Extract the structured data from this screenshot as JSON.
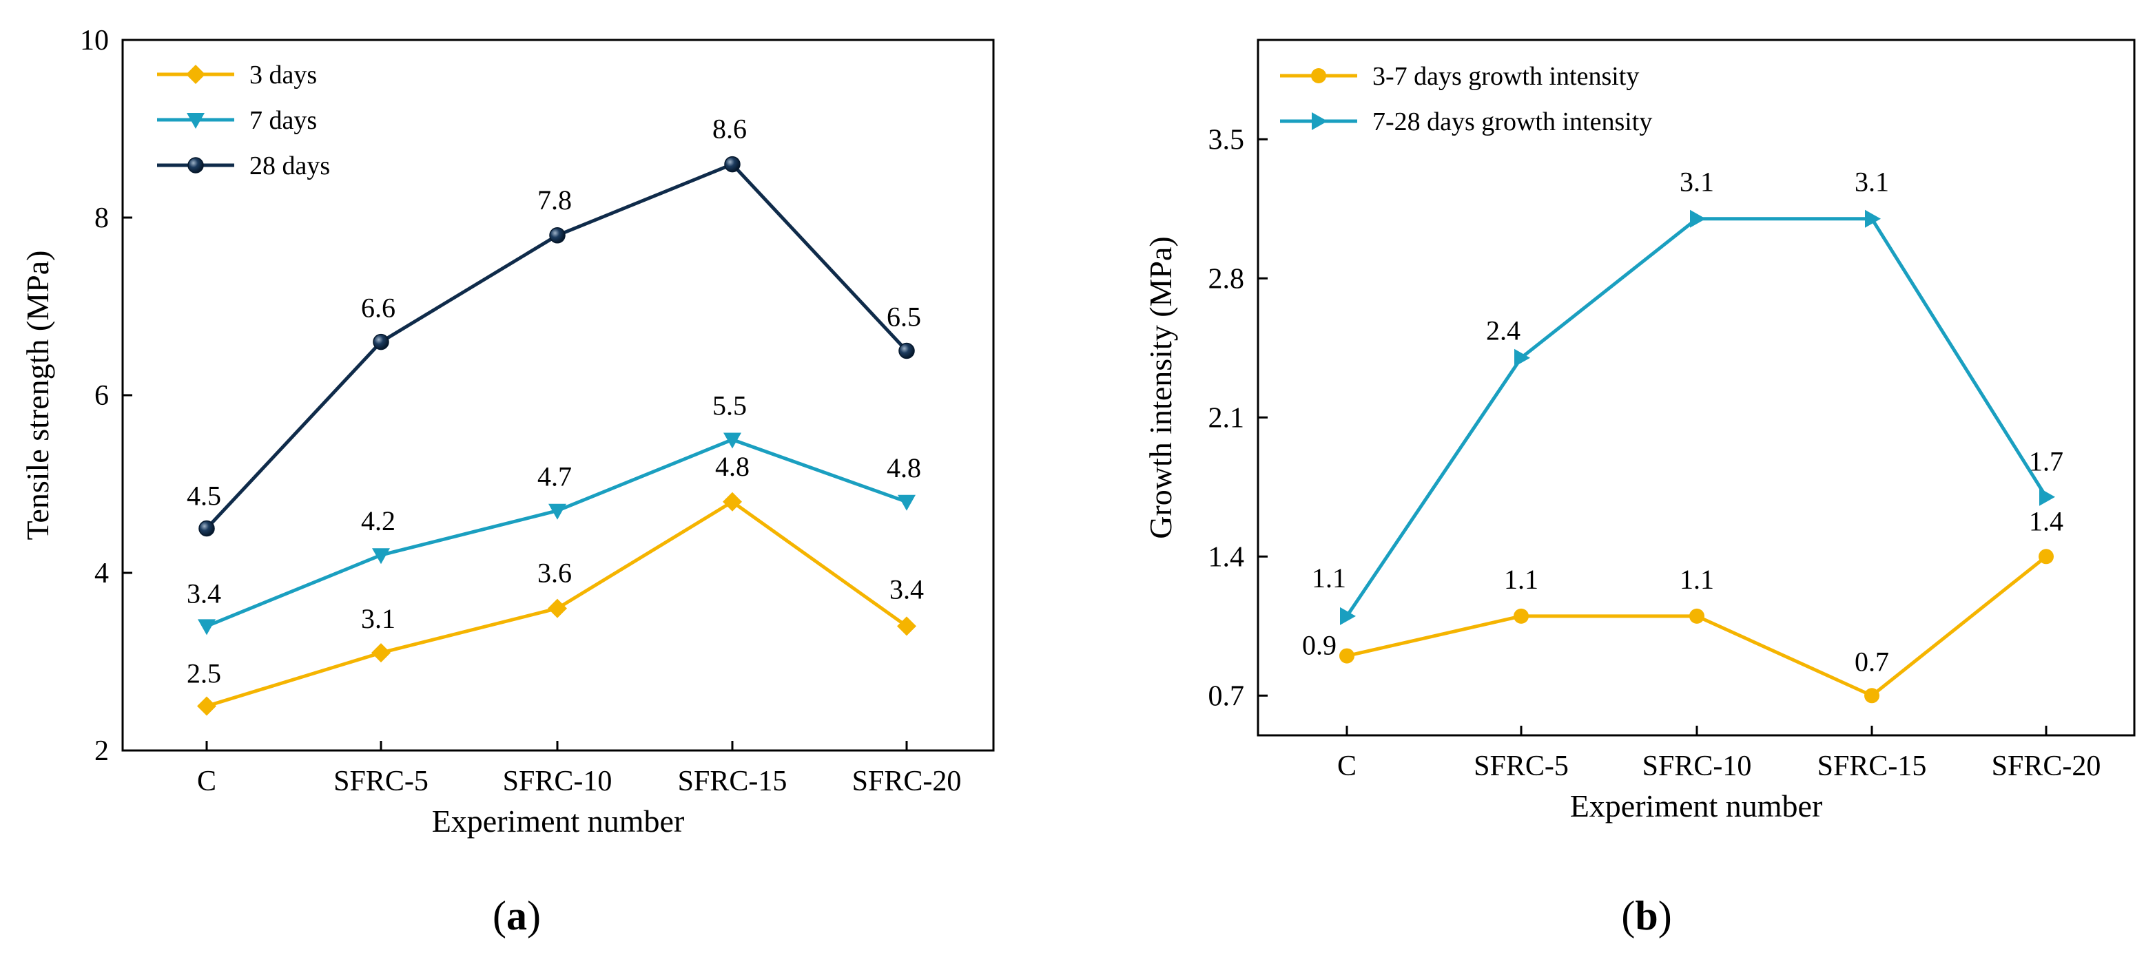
{
  "chart_data": [
    {
      "type": "line",
      "panel": "a",
      "panel_label": {
        "open": "(",
        "letter": "a",
        "close": ")"
      },
      "title": "",
      "xlabel": "Experiment number",
      "ylabel": "Tensile strength (MPa)",
      "categories": [
        "C",
        "SFRC-5",
        "SFRC-10",
        "SFRC-15",
        "SFRC-20"
      ],
      "ylim": [
        2,
        10
      ],
      "yticks": [
        2,
        4,
        6,
        8,
        10
      ],
      "ytick_labels": [
        "2",
        "4",
        "6",
        "8",
        "10"
      ],
      "legend_position": "top-left",
      "grid": false,
      "series": [
        {
          "name": "3 days",
          "marker": "diamond",
          "color": "#F5B400",
          "values": [
            2.5,
            3.1,
            3.6,
            4.8,
            3.4
          ],
          "labels": [
            "2.5",
            "3.1",
            "3.6",
            "4.8",
            "3.4"
          ]
        },
        {
          "name": "7 days",
          "marker": "triangle-down",
          "color": "#1A9FC0",
          "values": [
            3.4,
            4.2,
            4.7,
            5.5,
            4.8
          ],
          "labels": [
            "3.4",
            "4.2",
            "4.7",
            "5.5",
            "4.8"
          ]
        },
        {
          "name": "28 days",
          "marker": "sphere",
          "color": "#0F2B4A",
          "values": [
            4.5,
            6.6,
            7.8,
            8.6,
            6.5
          ],
          "labels": [
            "4.5",
            "6.6",
            "7.8",
            "8.6",
            "6.5"
          ]
        }
      ]
    },
    {
      "type": "line",
      "panel": "b",
      "panel_label": {
        "open": "(",
        "letter": "b",
        "close": ")"
      },
      "title": "",
      "xlabel": "Experiment number",
      "ylabel": "Growth intensity (MPa)",
      "categories": [
        "C",
        "SFRC-5",
        "SFRC-10",
        "SFRC-15",
        "SFRC-20"
      ],
      "ylim": [
        0.5,
        4.0
      ],
      "yticks": [
        0.7,
        1.4,
        2.1,
        2.8,
        3.5
      ],
      "ytick_labels": [
        "0.7",
        "1.4",
        "2.1",
        "2.8",
        "3.5"
      ],
      "legend_position": "top-left",
      "grid": false,
      "series": [
        {
          "name": "3-7 days growth intensity",
          "marker": "circle",
          "color": "#F5B400",
          "values": [
            0.9,
            1.1,
            1.1,
            0.7,
            1.4
          ],
          "labels": [
            "0.9",
            "1.1",
            "1.1",
            "0.7",
            "1.4"
          ]
        },
        {
          "name": "7-28 days growth intensity",
          "marker": "triangle-right",
          "color": "#1A9FC0",
          "values": [
            1.1,
            2.4,
            3.1,
            3.1,
            1.7
          ],
          "labels": [
            "1.1",
            "2.4",
            "3.1",
            "3.1",
            "1.7"
          ]
        }
      ]
    }
  ]
}
